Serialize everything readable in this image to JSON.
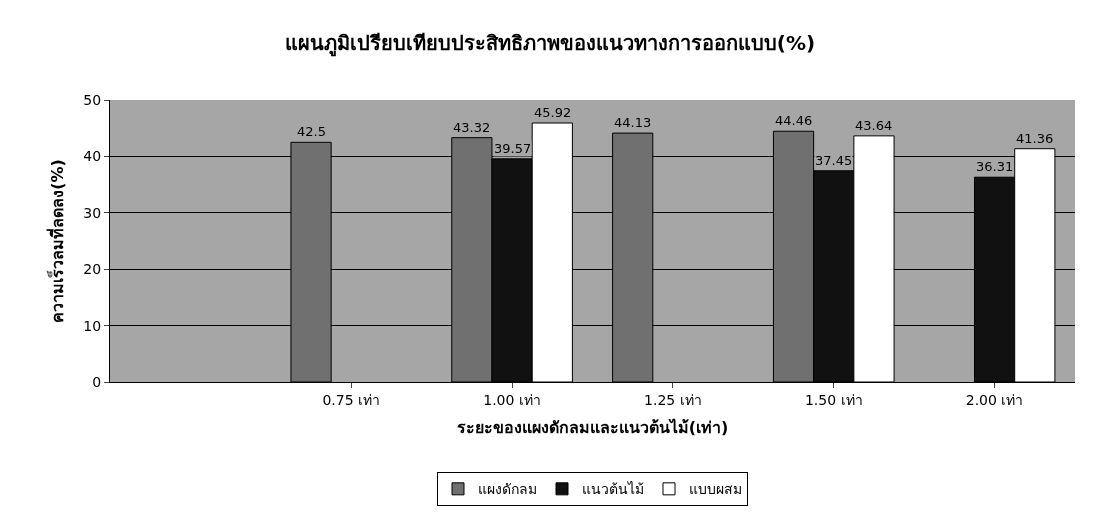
{
  "chart_data": {
    "type": "bar",
    "title": "แผนภูมิเปรียบเทียบประสิทธิภาพของแนวทางการออกแบบ(%)",
    "xlabel": "ระยะของแผงดักลมและแนวต้นไม้(เท่า)",
    "ylabel": "ความเร็วลมที่ลดลง(%)",
    "categories": [
      null,
      "0.75 เท่า",
      "1.00 เท่า",
      "1.25 เท่า",
      "1.50 เท่า",
      "2.00 เท่า"
    ],
    "series": [
      {
        "name": "แผงดักลม",
        "color": "#707070",
        "values": [
          null,
          42.5,
          43.32,
          44.13,
          44.46,
          null
        ]
      },
      {
        "name": "แนวต้นไม้",
        "color": "#111111",
        "values": [
          null,
          null,
          39.57,
          null,
          37.45,
          36.31
        ]
      },
      {
        "name": "แบบผสม",
        "color": "#ffffff",
        "values": [
          null,
          null,
          45.92,
          null,
          43.64,
          41.36
        ]
      }
    ],
    "ylim": [
      0,
      50
    ],
    "yticks": [
      0,
      10,
      20,
      30,
      40,
      50
    ],
    "grid": "y",
    "legend": "bottom",
    "data_labels": true
  }
}
